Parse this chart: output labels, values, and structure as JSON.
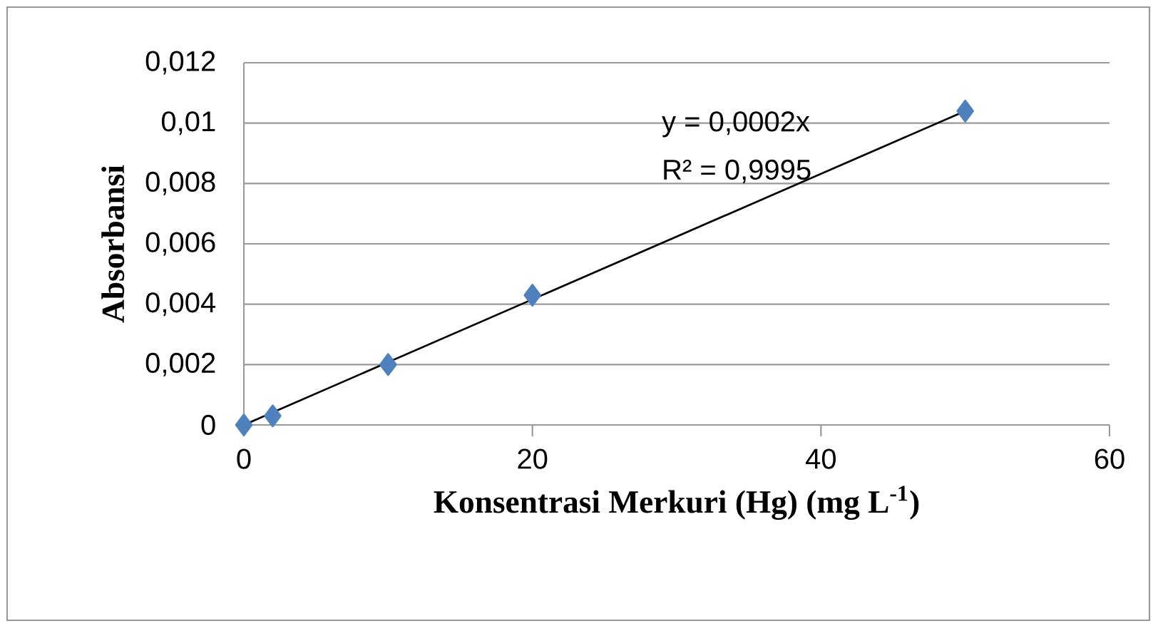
{
  "chart_data": {
    "type": "scatter",
    "xlabel": "Konsentrasi  Merkuri (Hg) (mg L$^{-1}$)",
    "ylabel": "Absorbansi",
    "series": [
      {
        "color": "#4f81bd",
        "marker": "diamond",
        "x": [
          0,
          2,
          10,
          20,
          50
        ],
        "values": [
          0,
          0.0003,
          0.002,
          0.0043,
          0.0104
        ]
      },
      {
        "type": "line",
        "color": "#000000",
        "marker": "none",
        "x": [
          0,
          50
        ],
        "values": [
          0,
          0.0104
        ]
      }
    ],
    "annotations": [
      "y = 0,0002x",
      "R² = 0,9995"
    ],
    "xlim": [
      0,
      60
    ],
    "xticks": [
      0,
      20,
      40,
      60
    ],
    "ylim": [
      0,
      0.012
    ],
    "yticks": [
      {
        "value": 0,
        "label": "0"
      },
      {
        "value": 0.002,
        "label": "0,002"
      },
      {
        "value": 0.004,
        "label": "0,004"
      },
      {
        "value": 0.006,
        "label": "0,006"
      },
      {
        "value": 0.008,
        "label": "0,008"
      },
      {
        "value": 0.01,
        "label": "0,01"
      },
      {
        "value": 0.012,
        "label": "0,012"
      }
    ],
    "grid": "y"
  }
}
